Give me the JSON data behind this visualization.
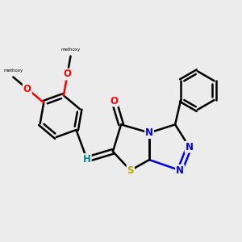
{
  "background_color": "#ececec",
  "bond_color": "#000000",
  "bond_width": 1.8,
  "atom_colors": {
    "N": "#0000ee",
    "S": "#bbaa00",
    "O": "#ff0000",
    "H": "#008888",
    "C": "#000000"
  },
  "font_size": 8.5,
  "fig_size": [
    3.0,
    3.0
  ],
  "dpi": 100
}
